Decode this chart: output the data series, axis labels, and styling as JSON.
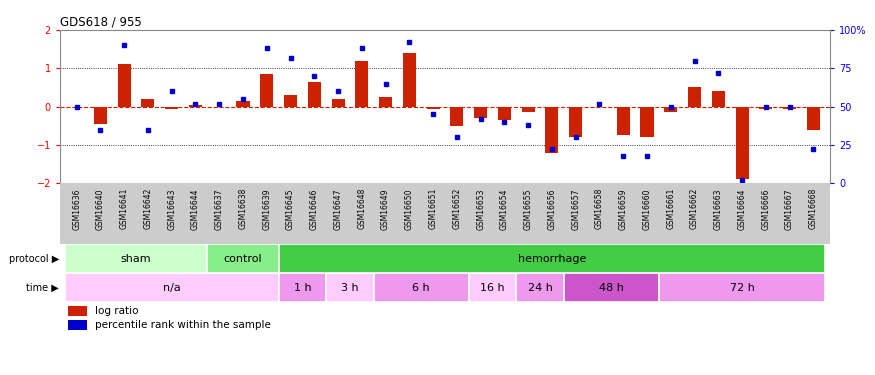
{
  "title": "GDS618 / 955",
  "samples": [
    "GSM16636",
    "GSM16640",
    "GSM16641",
    "GSM16642",
    "GSM16643",
    "GSM16644",
    "GSM16637",
    "GSM16638",
    "GSM16639",
    "GSM16645",
    "GSM16646",
    "GSM16647",
    "GSM16648",
    "GSM16649",
    "GSM16650",
    "GSM16651",
    "GSM16652",
    "GSM16653",
    "GSM16654",
    "GSM16655",
    "GSM16656",
    "GSM16657",
    "GSM16658",
    "GSM16659",
    "GSM16660",
    "GSM16661",
    "GSM16662",
    "GSM16663",
    "GSM16664",
    "GSM16666",
    "GSM16667",
    "GSM16668"
  ],
  "log_ratio": [
    0.0,
    -0.45,
    1.1,
    0.2,
    -0.05,
    0.05,
    0.0,
    0.15,
    0.85,
    0.3,
    0.65,
    0.2,
    1.2,
    0.25,
    1.4,
    -0.05,
    -0.5,
    -0.3,
    -0.35,
    -0.15,
    -1.2,
    -0.8,
    0.0,
    -0.75,
    -0.8,
    -0.15,
    0.5,
    0.4,
    -1.9,
    -0.05,
    -0.05,
    -0.6
  ],
  "pct_rank": [
    50,
    35,
    90,
    35,
    60,
    52,
    52,
    55,
    88,
    82,
    70,
    60,
    88,
    65,
    92,
    45,
    30,
    42,
    40,
    38,
    22,
    30,
    52,
    18,
    18,
    50,
    80,
    72,
    2,
    50,
    50,
    22
  ],
  "protocol_groups": [
    {
      "label": "sham",
      "start": 0,
      "end": 6,
      "color": "#ccffcc"
    },
    {
      "label": "control",
      "start": 6,
      "end": 9,
      "color": "#88ee88"
    },
    {
      "label": "hemorrhage",
      "start": 9,
      "end": 32,
      "color": "#44cc44"
    }
  ],
  "time_groups": [
    {
      "label": "n/a",
      "start": 0,
      "end": 9,
      "color": "#ffccff"
    },
    {
      "label": "1 h",
      "start": 9,
      "end": 11,
      "color": "#ee99ee"
    },
    {
      "label": "3 h",
      "start": 11,
      "end": 13,
      "color": "#ffccff"
    },
    {
      "label": "6 h",
      "start": 13,
      "end": 17,
      "color": "#ee99ee"
    },
    {
      "label": "16 h",
      "start": 17,
      "end": 19,
      "color": "#ffccff"
    },
    {
      "label": "24 h",
      "start": 19,
      "end": 21,
      "color": "#ee99ee"
    },
    {
      "label": "48 h",
      "start": 21,
      "end": 25,
      "color": "#cc55cc"
    },
    {
      "label": "72 h",
      "start": 25,
      "end": 32,
      "color": "#ee99ee"
    }
  ],
  "ylim": [
    -2,
    2
  ],
  "yticks_left": [
    -2,
    -1,
    0,
    1,
    2
  ],
  "yticks_right": [
    0,
    25,
    50,
    75,
    100
  ],
  "bar_color": "#cc2200",
  "dot_color": "#0000cc",
  "bg_color": "#ffffff",
  "tick_bg_color": "#cccccc"
}
